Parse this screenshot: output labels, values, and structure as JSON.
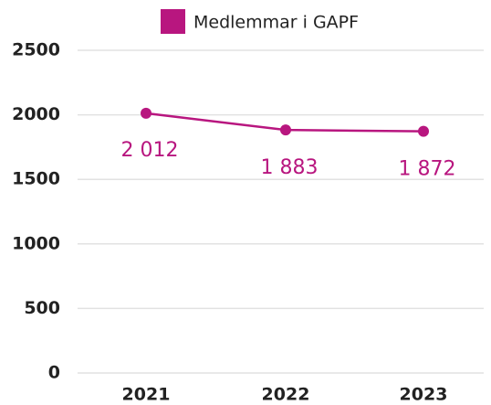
{
  "chart_data": {
    "type": "line",
    "categories": [
      "2021",
      "2022",
      "2023"
    ],
    "series": [
      {
        "name": "Medlemmar i GAPF",
        "color": "#b8167f",
        "values": [
          2012,
          1883,
          1872
        ],
        "value_labels": [
          "2 012",
          "1 883",
          "1 872"
        ]
      }
    ],
    "ylim": [
      0,
      2500
    ],
    "yticks": [
      0,
      500,
      1000,
      1500,
      2000,
      2500
    ],
    "grid": true,
    "legend": "top"
  }
}
